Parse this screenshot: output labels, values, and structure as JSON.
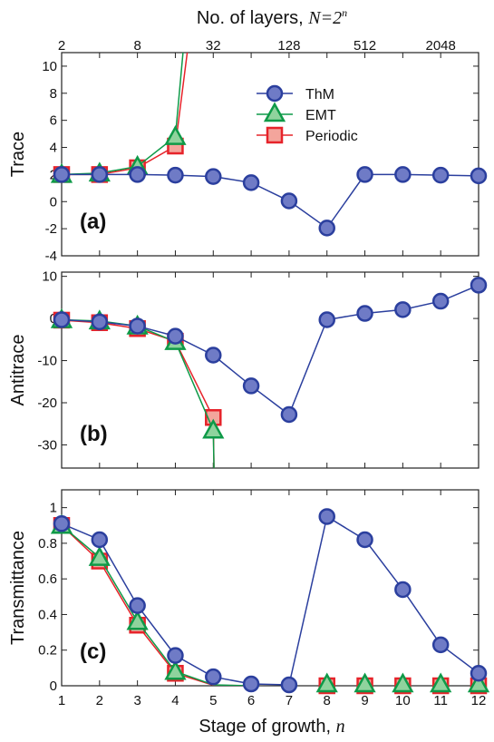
{
  "colors": {
    "thm": "#2b3f9e",
    "thm_fill": "#6f7bc6",
    "emt": "#0e9a48",
    "emt_fill": "#8fd39d",
    "periodic": "#e6232a",
    "periodic_fill": "#f3a59c"
  },
  "top_axis": {
    "label_prefix": "No. of layers, ",
    "label_math": "N=2",
    "label_sup": "n",
    "ticks": [
      {
        "stage": 1,
        "label": "2"
      },
      {
        "stage": 3,
        "label": "8"
      },
      {
        "stage": 5,
        "label": "32"
      },
      {
        "stage": 7,
        "label": "128"
      },
      {
        "stage": 9,
        "label": "512"
      },
      {
        "stage": 11,
        "label": "2048"
      }
    ]
  },
  "x_axis": {
    "label_prefix": "Stage of growth, ",
    "label_var": "n",
    "ticks": [
      "1",
      "2",
      "3",
      "4",
      "5",
      "6",
      "7",
      "8",
      "9",
      "10",
      "11",
      "12"
    ],
    "range": [
      1,
      12
    ]
  },
  "legend": {
    "thm": "ThM",
    "emt": "EMT",
    "periodic": "Periodic"
  },
  "chart_data": [
    {
      "type": "line",
      "panel_label": "(a)",
      "ylabel": "Trace",
      "xlim": [
        1,
        12
      ],
      "ylim": [
        -4,
        11
      ],
      "yticks": [
        "-4",
        "-2",
        "0",
        "2",
        "4",
        "6",
        "8",
        "10"
      ],
      "ytick_values": [
        -4,
        -2,
        0,
        2,
        4,
        6,
        8,
        10
      ],
      "series": [
        {
          "name": "ThM",
          "x": [
            1,
            2,
            3,
            4,
            5,
            6,
            7,
            8,
            9,
            10,
            11,
            12
          ],
          "y": [
            2,
            2,
            2,
            1.95,
            1.85,
            1.4,
            0.05,
            -1.95,
            2,
            2,
            1.95,
            1.9
          ],
          "marker": "circle"
        },
        {
          "name": "EMT",
          "x": [
            1,
            2,
            3,
            4
          ],
          "y": [
            2,
            2.1,
            2.6,
            4.8
          ],
          "marker": "triangle",
          "tail": [
            4.3,
            14
          ]
        },
        {
          "name": "Periodic",
          "x": [
            1,
            2,
            3,
            4
          ],
          "y": [
            2,
            2,
            2.5,
            4.1
          ],
          "marker": "square",
          "tail": [
            4.45,
            14
          ]
        }
      ]
    },
    {
      "type": "line",
      "panel_label": "(b)",
      "ylabel": "Antitrace",
      "xlim": [
        1,
        12
      ],
      "ylim": [
        -35.5,
        11
      ],
      "yticks": [
        "-30",
        "-20",
        "-10",
        "0",
        "10"
      ],
      "ytick_values": [
        -30,
        -20,
        -10,
        0,
        10
      ],
      "series": [
        {
          "name": "ThM",
          "x": [
            1,
            2,
            3,
            4,
            5,
            6,
            7,
            8,
            9,
            10,
            11,
            12
          ],
          "y": [
            -0.3,
            -0.8,
            -1.8,
            -4.2,
            -8.7,
            -16,
            -22.8,
            -0.3,
            1.2,
            2.1,
            4.1,
            7.9
          ],
          "marker": "circle"
        },
        {
          "name": "EMT",
          "x": [
            1,
            2,
            3,
            4,
            5
          ],
          "y": [
            -0.3,
            -0.6,
            -1.8,
            -5.5,
            -26.5
          ],
          "marker": "triangle",
          "tail": [
            5.02,
            -36
          ]
        },
        {
          "name": "Periodic",
          "x": [
            1,
            2,
            3,
            4,
            5
          ],
          "y": [
            -0.4,
            -1,
            -2.4,
            -5.4,
            -23.5
          ],
          "marker": "square",
          "tail": [
            5.02,
            -36
          ]
        }
      ]
    },
    {
      "type": "line",
      "panel_label": "(c)",
      "ylabel": "Transmittance",
      "xlim": [
        1,
        12
      ],
      "ylim": [
        0,
        1.1
      ],
      "yticks": [
        "0",
        "0.2",
        "0.4",
        "0.6",
        "0.8",
        "1"
      ],
      "ytick_values": [
        0,
        0.2,
        0.4,
        0.6,
        0.8,
        1
      ],
      "series": [
        {
          "name": "ThM",
          "x": [
            1,
            2,
            3,
            4,
            5,
            6,
            7,
            8,
            9,
            10,
            11,
            12
          ],
          "y": [
            0.91,
            0.82,
            0.45,
            0.17,
            0.05,
            0.01,
            0.005,
            0.95,
            0.82,
            0.54,
            0.23,
            0.07
          ],
          "marker": "circle"
        },
        {
          "name": "EMT",
          "x": [
            1,
            2,
            3,
            4,
            8,
            9,
            10,
            11,
            12
          ],
          "y": [
            0.9,
            0.72,
            0.36,
            0.08,
            0.01,
            0.01,
            0.01,
            0.01,
            0.01
          ],
          "marker": "triangle",
          "line_x": [
            1,
            2,
            3,
            4,
            5,
            6
          ],
          "line_y": [
            0.9,
            0.72,
            0.36,
            0.08,
            0.005,
            0
          ]
        },
        {
          "name": "Periodic",
          "x": [
            1,
            2,
            3,
            4,
            8,
            9,
            10,
            11,
            12
          ],
          "y": [
            0.9,
            0.7,
            0.34,
            0.07,
            0,
            0,
            0,
            0,
            0
          ],
          "marker": "square",
          "line_x": [
            1,
            2,
            3,
            4,
            5,
            6
          ],
          "line_y": [
            0.9,
            0.7,
            0.34,
            0.07,
            0.003,
            0
          ]
        }
      ]
    }
  ]
}
